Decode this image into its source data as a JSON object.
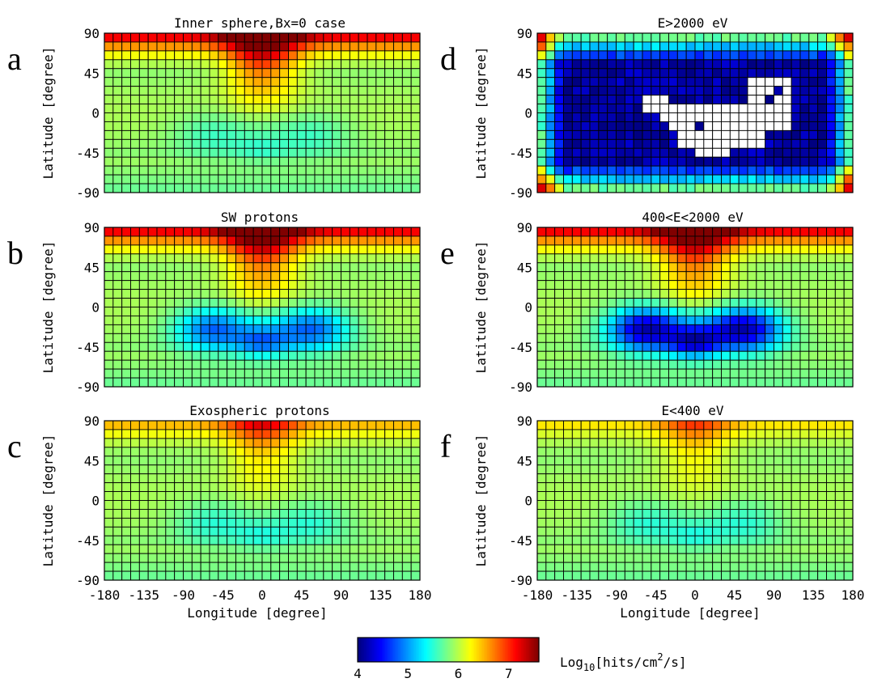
{
  "figure": {
    "xlabel": "Longitude [degree]",
    "ylabel": "Latitude [degree]"
  },
  "colorbar": {
    "label_prefix": "Log",
    "label_sub": "10",
    "label_mid": "[hits/cm",
    "label_sup": "2",
    "label_suffix": "/s]",
    "ticks": [
      "4",
      "5",
      "6",
      "7"
    ],
    "tick_values": [
      4,
      5,
      6,
      7
    ],
    "range": [
      4,
      7.6
    ],
    "colormap": "jet"
  },
  "chart_data": [
    {
      "type": "heatmap",
      "panel": "a",
      "title": "Inner sphere,Bx=0 case",
      "xlabel": "Longitude [degree]",
      "ylabel": "Latitude [degree]",
      "xlim": [
        -180,
        180
      ],
      "ylim": [
        -90,
        90
      ],
      "xticks": [
        "-180",
        "-135",
        "-90",
        "-45",
        "0",
        "45",
        "90",
        "135",
        "180"
      ],
      "yticks": [
        "90",
        "45",
        "0",
        "-45",
        "-90"
      ],
      "grid": "36 x 18 cells (10 degree bins)",
      "model": {
        "kind": "base",
        "pole": 1.0,
        "trough": 0.25,
        "trough_cut": 0
      }
    },
    {
      "type": "heatmap",
      "panel": "b",
      "title": "SW protons",
      "xlabel": "Longitude [degree]",
      "ylabel": "Latitude [degree]",
      "xlim": [
        -180,
        180
      ],
      "ylim": [
        -90,
        90
      ],
      "xticks": [
        "-180",
        "-135",
        "-90",
        "-45",
        "0",
        "45",
        "90",
        "135",
        "180"
      ],
      "yticks": [
        "90",
        "45",
        "0",
        "-45",
        "-90"
      ],
      "grid": "36 x 18 cells (10 degree bins)",
      "model": {
        "kind": "base",
        "pole": 1.0,
        "trough": 0.8,
        "trough_cut": 0
      }
    },
    {
      "type": "heatmap",
      "panel": "c",
      "title": "Exospheric protons",
      "xlabel": "Longitude [degree]",
      "ylabel": "Latitude [degree]",
      "xlim": [
        -180,
        180
      ],
      "ylim": [
        -90,
        90
      ],
      "xticks": [
        "-180",
        "-135",
        "-90",
        "-45",
        "0",
        "45",
        "90",
        "135",
        "180"
      ],
      "yticks": [
        "90",
        "45",
        "0",
        "-45",
        "-90"
      ],
      "grid": "36 x 18 cells (10 degree bins)",
      "model": {
        "kind": "base",
        "pole": 0.55,
        "trough": 0.3,
        "trough_cut": 0
      }
    },
    {
      "type": "heatmap",
      "panel": "d",
      "title": "E>2000 eV",
      "xlabel": "Longitude [degree]",
      "ylabel": "Latitude [degree]",
      "xlim": [
        -180,
        180
      ],
      "ylim": [
        -90,
        90
      ],
      "xticks": [
        "-180",
        "-135",
        "-90",
        "-45",
        "0",
        "45",
        "90",
        "135",
        "180"
      ],
      "yticks": [
        "90",
        "45",
        "0",
        "-45",
        "-90"
      ],
      "grid": "36 x 18 cells (10 degree bins); white cells = no hits",
      "model": {
        "kind": "high",
        "pole": 0.1,
        "trough": 0.0,
        "trough_cut": 0
      }
    },
    {
      "type": "heatmap",
      "panel": "e",
      "title": "400<E<2000 eV",
      "xlabel": "Longitude [degree]",
      "ylabel": "Latitude [degree]",
      "xlim": [
        -180,
        180
      ],
      "ylim": [
        -90,
        90
      ],
      "xticks": [
        "-180",
        "-135",
        "-90",
        "-45",
        "0",
        "45",
        "90",
        "135",
        "180"
      ],
      "yticks": [
        "90",
        "45",
        "0",
        "-45",
        "-90"
      ],
      "grid": "36 x 18 cells (10 degree bins)",
      "model": {
        "kind": "base",
        "pole": 1.0,
        "trough": 1.25,
        "trough_cut": 0
      }
    },
    {
      "type": "heatmap",
      "panel": "f",
      "title": "E<400 eV",
      "xlabel": "Longitude [degree]",
      "ylabel": "Latitude [degree]",
      "xlim": [
        -180,
        180
      ],
      "ylim": [
        -90,
        90
      ],
      "xticks": [
        "-180",
        "-135",
        "-90",
        "-45",
        "0",
        "45",
        "90",
        "135",
        "180"
      ],
      "yticks": [
        "90",
        "45",
        "0",
        "-45",
        "-90"
      ],
      "grid": "36 x 18 cells (10 degree bins)",
      "model": {
        "kind": "base",
        "pole": 0.45,
        "trough": 0.3,
        "trough_cut": 0
      }
    }
  ]
}
